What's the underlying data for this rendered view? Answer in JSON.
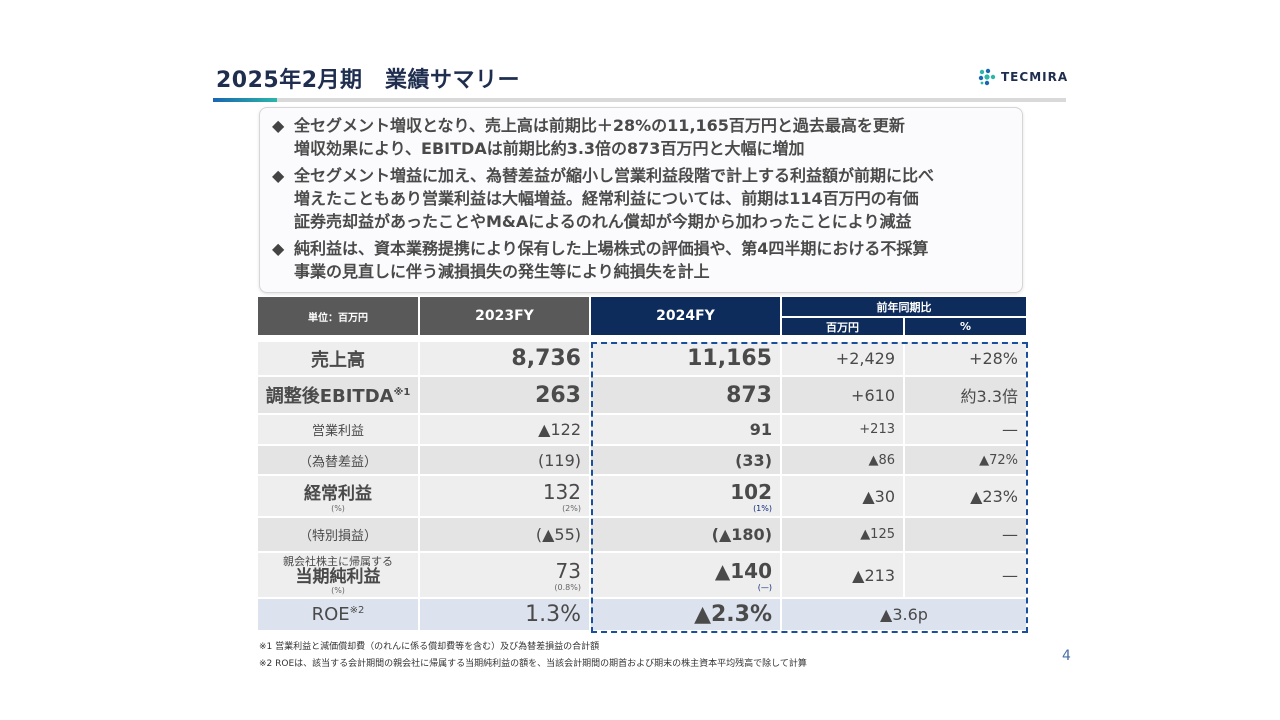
{
  "page": {
    "title": "2025年2月期　業績サマリー",
    "page_number": "4",
    "accent_colors": {
      "navy": "#0d2b5b",
      "gray_header": "#595959",
      "logo_teal": "#2bb6a8",
      "logo_blue": "#1a66b0"
    }
  },
  "logo": {
    "text": "TECMIRA",
    "icon": "tecmira-logo-icon"
  },
  "summary": [
    {
      "lines": [
        "全セグメント増収となり、売上高は前期比＋28%の11,165百万円と過去最高を更新",
        "増収効果により、EBITDAは前期比約3.3倍の873百万円と大幅に増加"
      ]
    },
    {
      "lines": [
        "全セグメント増益に加え、為替差益が縮小し営業利益段階で計上する利益額が前期に比べ",
        "増えたこともあり営業利益は大幅増益。経常利益については、前期は114百万円の有価",
        "証券売却益があったことやM&Aによるのれん償却が今期から加わったことにより減益"
      ]
    },
    {
      "lines": [
        "純利益は、資本業務提携により保有した上場株式の評価損や、第4四半期における不採算",
        "事業の見直しに伴う減損損失の発生等により純損失を計上"
      ]
    }
  ],
  "bullet_mark": "◆",
  "table": {
    "headers": {
      "unit": "単位：百万円",
      "fy2023": "2023FY",
      "fy2024": "2024FY",
      "yoy": "前年同期比",
      "yoy_amount": "百万円",
      "yoy_pct": "%"
    },
    "rows": [
      {
        "label": "売上高",
        "fy2023": "8,736",
        "fy2024": "11,165",
        "diff": "+2,429",
        "pct": "+28%"
      },
      {
        "label": "調整後EBITDA",
        "label_note": "※1",
        "fy2023": "263",
        "fy2024": "873",
        "diff": "+610",
        "pct": "約3.3倍"
      },
      {
        "label": "営業利益",
        "fy2023": "▲122",
        "fy2024": "91",
        "diff": "+213",
        "pct": "—"
      },
      {
        "label": "（為替差益）",
        "fy2023": "(119)",
        "fy2024": "(33)",
        "diff": "▲86",
        "pct": "▲72%"
      },
      {
        "label": "経常利益",
        "label_sub": "(%)",
        "fy2023": "132",
        "fy2023_sub": "(2%)",
        "fy2024": "102",
        "fy2024_sub": "(1%)",
        "diff": "▲30",
        "pct": "▲23%"
      },
      {
        "label": "（特別損益）",
        "fy2023": "(▲55)",
        "fy2024": "(▲180)",
        "diff": "▲125",
        "pct": "—"
      },
      {
        "label_top": "親会社株主に帰属する",
        "label": "当期純利益",
        "label_sub": "(%)",
        "fy2023": "73",
        "fy2023_sub": "(0.8%)",
        "fy2024": "▲140",
        "fy2024_sub": "(—)",
        "diff": "▲213",
        "pct": "—"
      },
      {
        "label": "ROE",
        "label_note": "※2",
        "fy2023": "1.3%",
        "fy2024": "▲2.3%",
        "diff_merged": "▲3.6p"
      }
    ]
  },
  "footnotes": [
    "※1 営業利益と減価償却費（のれんに係る償却費等を含む）及び為替差損益の合計額",
    "※2 ROEは、該当する会計期間の親会社に帰属する当期純利益の額を、当該会計期間の期首および期末の株主資本平均残高で除して計算"
  ]
}
